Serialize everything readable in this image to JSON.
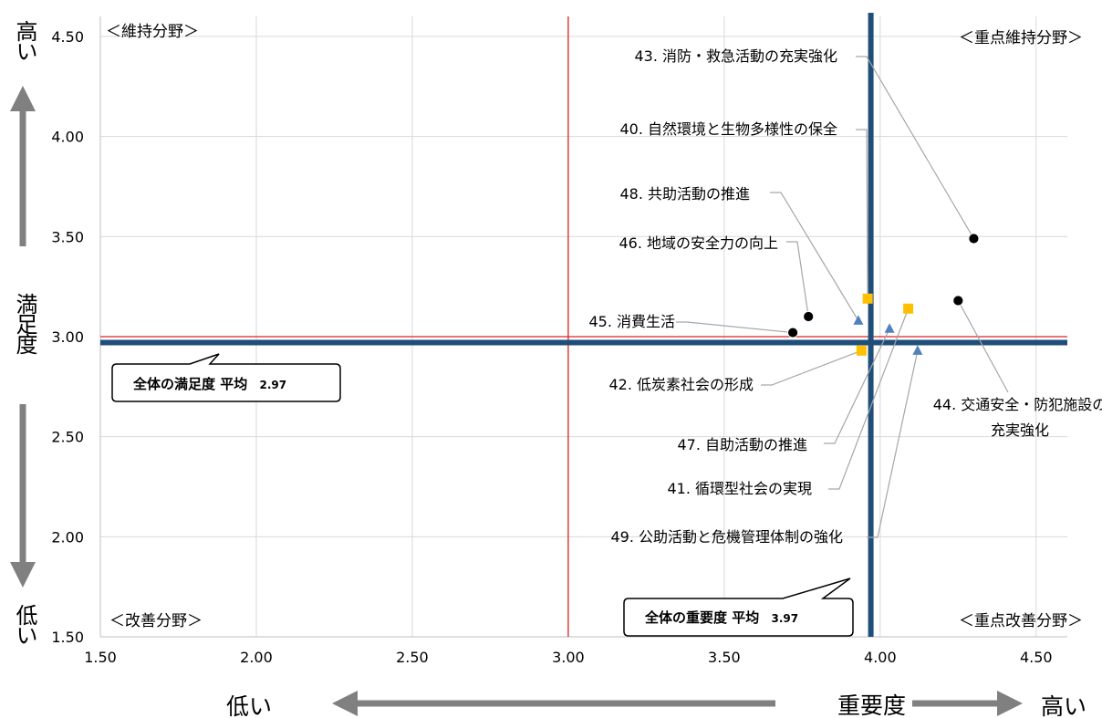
{
  "chart_data": {
    "type": "scatter",
    "xlabel": "重要度",
    "ylabel": "満足度",
    "xlim": [
      1.5,
      4.6
    ],
    "ylim": [
      1.5,
      4.6
    ],
    "xticks": [
      "1.50",
      "2.00",
      "2.50",
      "3.00",
      "3.50",
      "4.00",
      "4.50"
    ],
    "yticks": [
      "1.50",
      "2.00",
      "2.50",
      "3.00",
      "3.50",
      "4.00",
      "4.50"
    ],
    "xtick_values": [
      1.5,
      2.0,
      2.5,
      3.0,
      3.5,
      4.0,
      4.5
    ],
    "ytick_values": [
      1.5,
      2.0,
      2.5,
      3.0,
      3.5,
      4.0,
      4.5
    ],
    "grid": true,
    "x_high_label": "高い",
    "x_low_label": "低い",
    "y_high_label": "高い",
    "y_low_label": "低い",
    "quadrants": {
      "top_left": "＜維持分野＞",
      "top_right": "＜重点維持分野＞",
      "bottom_left": "＜改善分野＞",
      "bottom_right": "＜重点改善分野＞"
    },
    "reference_lines": {
      "x": 3.0,
      "y": 3.0
    },
    "averages": {
      "importance": {
        "value": 3.97,
        "value_label": "3.97",
        "label": "全体の重要度 平均"
      },
      "satisfaction": {
        "value": 2.97,
        "value_label": "2.97",
        "label": "全体の満足度 平均"
      }
    },
    "colors": {
      "circle": "#000000",
      "square": "#FFC000",
      "triangle": "#4F81BD",
      "average_line": "#1F4E79",
      "reference_line": "#E02020"
    },
    "points": [
      {
        "label": "40. 自然環境と生物多様性の保全",
        "x": 3.96,
        "y": 3.19,
        "marker": "square"
      },
      {
        "label": "41. 循環型社会の実現",
        "x": 4.09,
        "y": 3.14,
        "marker": "square"
      },
      {
        "label": "42. 低炭素社会の形成",
        "x": 3.94,
        "y": 2.93,
        "marker": "square"
      },
      {
        "label": "43. 消防・救急活動の充実強化",
        "x": 4.3,
        "y": 3.49,
        "marker": "circle"
      },
      {
        "label": "44. 交通安全・防犯施設の充実強化",
        "x": 4.25,
        "y": 3.18,
        "marker": "circle"
      },
      {
        "label": "45. 消費生活",
        "x": 3.72,
        "y": 3.02,
        "marker": "circle"
      },
      {
        "label": "46. 地域の安全力の向上",
        "x": 3.77,
        "y": 3.1,
        "marker": "circle"
      },
      {
        "label": "47. 自助活動の推進",
        "x": 4.03,
        "y": 3.04,
        "marker": "triangle"
      },
      {
        "label": "48. 共助活動の推進",
        "x": 3.93,
        "y": 3.08,
        "marker": "triangle"
      },
      {
        "label": "49. 公助活動と危機管理体制の強化",
        "x": 4.12,
        "y": 2.93,
        "marker": "triangle"
      }
    ]
  }
}
